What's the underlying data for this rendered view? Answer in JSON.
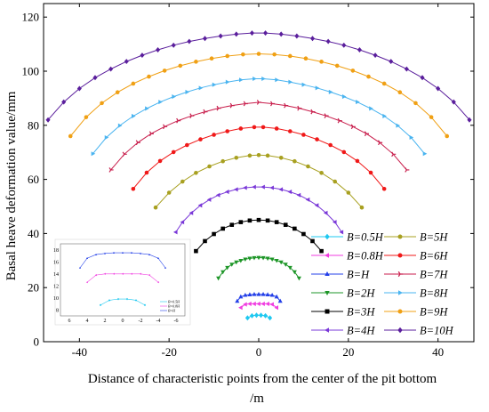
{
  "chart_data": {
    "type": "line",
    "xlabel_line1": "Distance of  characteristic points from the center of the pit bottom",
    "xlabel_line2": "/m",
    "ylabel": "Basal heave deformation value/mm",
    "xlim": [
      -48,
      48
    ],
    "ylim": [
      0,
      125
    ],
    "xticks": [
      -40,
      -20,
      0,
      20,
      40
    ],
    "yticks": [
      0,
      20,
      40,
      60,
      80,
      100,
      120
    ],
    "grid": false,
    "legend_position": "bottom-right, two columns",
    "series": [
      {
        "name": "B=0.5H",
        "color": "#1ec8f0",
        "marker": "diamond",
        "x": [
          -2.5,
          -1.5,
          -0.5,
          0.5,
          1.5,
          2.5
        ],
        "y": [
          8.8,
          9.6,
          9.8,
          9.8,
          9.6,
          8.8
        ]
      },
      {
        "name": "B=0.8H",
        "color": "#f03ce0",
        "marker": "triangle-left",
        "x": [
          -4,
          -3,
          -2,
          -1,
          0,
          1,
          2,
          3,
          4
        ],
        "y": [
          12.6,
          13.8,
          14.0,
          14.0,
          14.0,
          14.0,
          14.0,
          13.8,
          12.6
        ]
      },
      {
        "name": "B=H",
        "color": "#2440e8",
        "marker": "triangle-up",
        "x": [
          -4.8,
          -4,
          -3,
          -2,
          -1,
          0,
          1,
          2,
          3,
          4,
          4.8
        ],
        "y": [
          15.0,
          16.6,
          17.2,
          17.4,
          17.5,
          17.5,
          17.5,
          17.4,
          17.2,
          16.6,
          15.0
        ]
      },
      {
        "name": "B=2H",
        "color": "#1e9628",
        "marker": "triangle-down",
        "x": [
          -9,
          -8,
          -7,
          -6,
          -5,
          -4,
          -3,
          -2,
          -1,
          0,
          1,
          2,
          3,
          4,
          5,
          6,
          7,
          8,
          9
        ],
        "y": [
          23.5,
          25.8,
          27.4,
          28.6,
          29.4,
          30.0,
          30.5,
          30.8,
          31.0,
          31.1,
          31.0,
          30.8,
          30.5,
          30.0,
          29.4,
          28.6,
          27.4,
          25.8,
          23.5
        ]
      },
      {
        "name": "B=3H",
        "color": "#000000",
        "marker": "square",
        "x": [
          -14,
          -12,
          -10,
          -8,
          -6,
          -4,
          -2,
          0,
          2,
          4,
          6,
          8,
          10,
          12,
          14
        ],
        "y": [
          33.5,
          37.2,
          39.8,
          41.8,
          43.2,
          44.2,
          44.8,
          45.0,
          44.8,
          44.2,
          43.2,
          41.8,
          39.8,
          37.2,
          33.5
        ]
      },
      {
        "name": "B=4H",
        "color": "#7a38d8",
        "marker": "triangle-left",
        "x": [
          -18.5,
          -17,
          -15,
          -13,
          -11,
          -9,
          -7,
          -5,
          -3,
          -1,
          1,
          3,
          5,
          7,
          9,
          11,
          13,
          15,
          17,
          18.5
        ],
        "y": [
          40.5,
          44.2,
          47.6,
          50.4,
          52.5,
          54.2,
          55.4,
          56.3,
          56.9,
          57.2,
          57.2,
          56.9,
          56.3,
          55.4,
          54.2,
          52.5,
          50.4,
          47.6,
          44.2,
          40.5
        ]
      },
      {
        "name": "B=5H",
        "color": "#a8a020",
        "marker": "circle",
        "x": [
          -23,
          -20,
          -17,
          -14,
          -11,
          -8,
          -5,
          -2,
          0,
          2,
          5,
          8,
          11,
          14,
          17,
          20,
          23
        ],
        "y": [
          49.6,
          55.1,
          59.2,
          62.4,
          64.8,
          66.7,
          68.0,
          68.8,
          69.0,
          68.8,
          68.0,
          66.7,
          64.8,
          62.4,
          59.2,
          55.1,
          49.6
        ]
      },
      {
        "name": "B=6H",
        "color": "#f01818",
        "marker": "circle",
        "x": [
          -28,
          -25,
          -22,
          -19,
          -16,
          -13,
          -10,
          -7,
          -4,
          -1,
          1,
          4,
          7,
          10,
          13,
          16,
          19,
          22,
          25,
          28
        ],
        "y": [
          56.5,
          62.5,
          66.8,
          70.1,
          72.7,
          74.8,
          76.5,
          77.8,
          78.8,
          79.3,
          79.3,
          78.8,
          77.8,
          76.5,
          74.8,
          72.7,
          70.1,
          66.8,
          62.5,
          56.5
        ]
      },
      {
        "name": "B=7H",
        "color": "#c81e4c",
        "marker": "tri-right",
        "x": [
          -33,
          -30,
          -27,
          -24,
          -21,
          -18,
          -15,
          -12,
          -9,
          -6,
          -3,
          0,
          3,
          6,
          9,
          12,
          15,
          18,
          21,
          24,
          27,
          30,
          33
        ],
        "y": [
          63.5,
          69.3,
          73.6,
          76.9,
          79.5,
          81.7,
          83.5,
          85.0,
          86.3,
          87.3,
          88.0,
          88.5,
          88.0,
          87.3,
          86.3,
          85.0,
          83.5,
          81.7,
          79.5,
          76.9,
          73.6,
          69.3,
          63.5
        ]
      },
      {
        "name": "B=8H",
        "color": "#4ab4f0",
        "marker": "triangle-right",
        "x": [
          -37,
          -34,
          -31,
          -28,
          -25,
          -22,
          -19,
          -16,
          -13,
          -10,
          -7,
          -4,
          -1,
          1,
          4,
          7,
          10,
          13,
          16,
          19,
          22,
          25,
          28,
          31,
          34,
          37
        ],
        "y": [
          69.5,
          75.5,
          79.9,
          83.4,
          86.2,
          88.6,
          90.6,
          92.3,
          93.8,
          95.0,
          96.0,
          96.8,
          97.2,
          97.2,
          96.8,
          96.0,
          95.0,
          93.8,
          92.3,
          90.6,
          88.6,
          86.2,
          83.4,
          79.9,
          75.5,
          69.5
        ]
      },
      {
        "name": "B=9H",
        "color": "#f0a014",
        "marker": "circle",
        "x": [
          -42,
          -38.5,
          -35,
          -31.5,
          -28,
          -24.5,
          -21,
          -17.5,
          -14,
          -10.5,
          -7,
          -3.5,
          0,
          3.5,
          7,
          10.5,
          14,
          17.5,
          21,
          24.5,
          28,
          31.5,
          35,
          38.5,
          42
        ],
        "y": [
          76.0,
          83.0,
          88.2,
          92.2,
          95.4,
          98.0,
          100.2,
          102.0,
          103.5,
          104.7,
          105.6,
          106.2,
          106.4,
          106.2,
          105.6,
          104.7,
          103.5,
          102.0,
          100.2,
          98.0,
          95.4,
          92.2,
          88.2,
          83.0,
          76.0
        ]
      },
      {
        "name": "B=10H",
        "color": "#5a1e9c",
        "marker": "diamond",
        "x": [
          -47,
          -43.5,
          -40,
          -36.5,
          -33,
          -29.5,
          -26,
          -22.5,
          -19,
          -15.5,
          -12,
          -8.5,
          -5,
          -1.5,
          1.5,
          5,
          8.5,
          12,
          15.5,
          19,
          22.5,
          26,
          29.5,
          33,
          36.5,
          40,
          43.5,
          47
        ],
        "y": [
          82.0,
          88.6,
          93.6,
          97.6,
          100.8,
          103.6,
          105.9,
          107.9,
          109.6,
          111.0,
          112.1,
          113.0,
          113.7,
          114.1,
          114.1,
          113.7,
          113.0,
          112.1,
          111.0,
          109.6,
          107.9,
          105.9,
          103.6,
          100.8,
          97.6,
          93.6,
          88.6,
          82.0
        ]
      }
    ],
    "inset": {
      "xlim": [
        -7,
        7
      ],
      "ylim": [
        7,
        19
      ],
      "xticks": [
        -6,
        -4,
        -2,
        0,
        2,
        4,
        6
      ],
      "xtick_labels": [
        "6",
        "4",
        "2",
        "0",
        "-2",
        "-4",
        "-6"
      ],
      "yticks": [
        8,
        10,
        12,
        14,
        16,
        18
      ],
      "legend": [
        "B=0.5H",
        "B=0.8H",
        "B=H"
      ]
    }
  }
}
